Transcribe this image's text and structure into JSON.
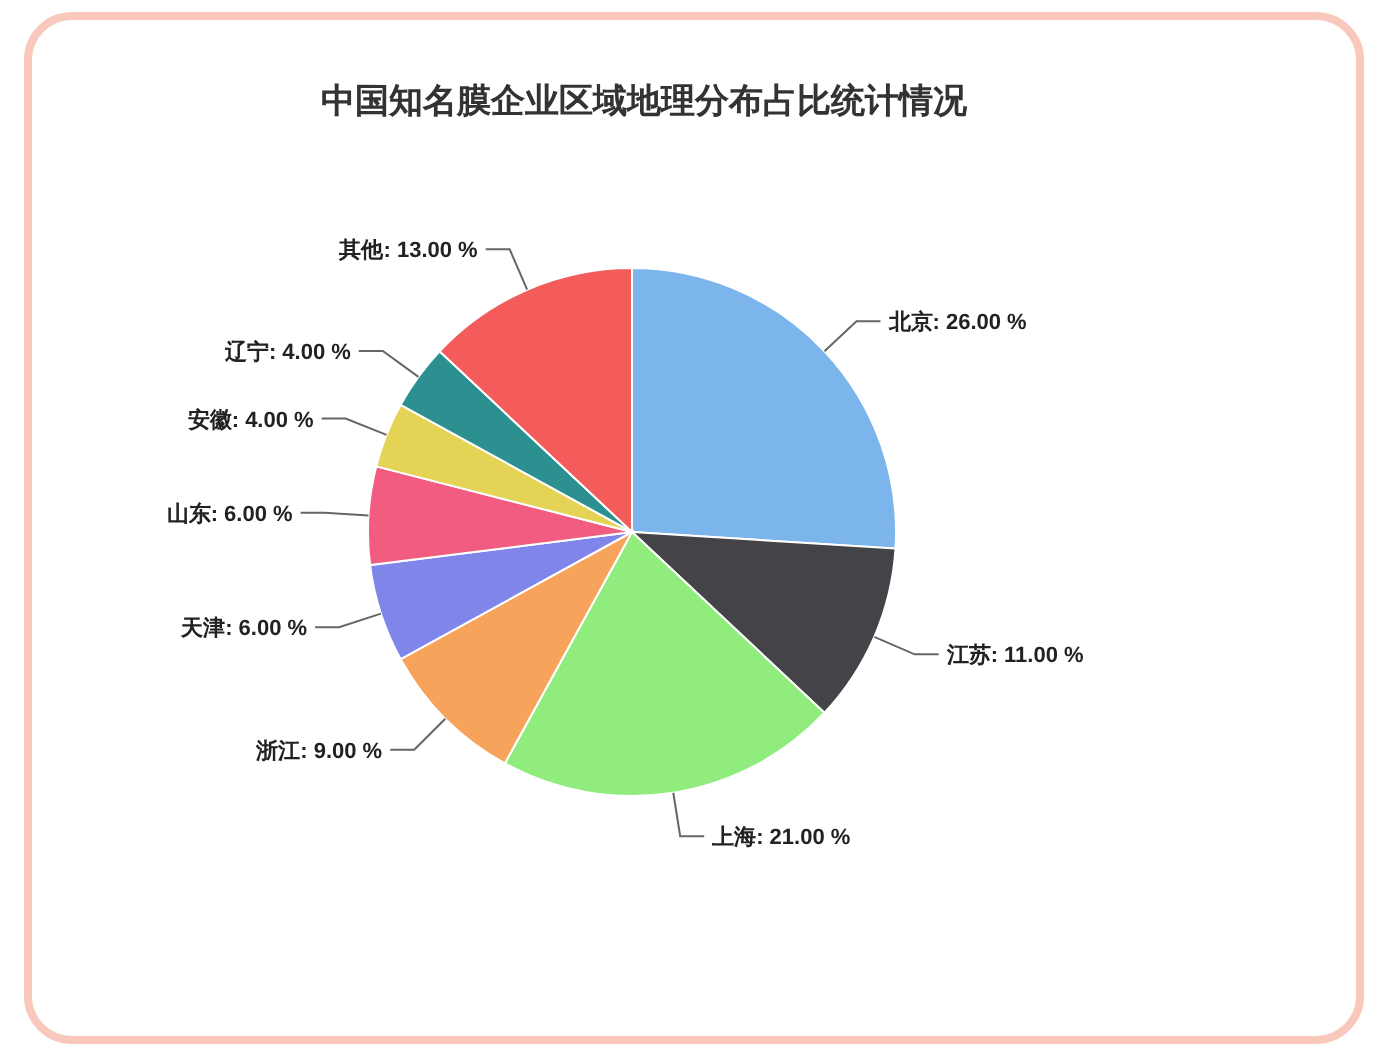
{
  "chart_data": {
    "type": "pie",
    "title": "中国知名膜企业区域地理分布占比统计情况",
    "categories": [
      "北京",
      "江苏",
      "上海",
      "浙江",
      "天津",
      "山东",
      "安徽",
      "辽宁",
      "其他"
    ],
    "values": [
      26,
      11,
      21,
      9,
      6,
      6,
      4,
      4,
      13
    ],
    "value_labels": [
      "26.00 %",
      "11.00 %",
      "21.00 %",
      "9.00 %",
      "6.00 %",
      "6.00 %",
      "4.00 %",
      "4.00 %",
      "13.00 %"
    ],
    "colors": [
      "#7cb5ec",
      "#434348",
      "#90ed7d",
      "#f7a35c",
      "#8085e9",
      "#f15c80",
      "#e4d354",
      "#2b908f",
      "#f45b5b"
    ],
    "legend": false
  }
}
